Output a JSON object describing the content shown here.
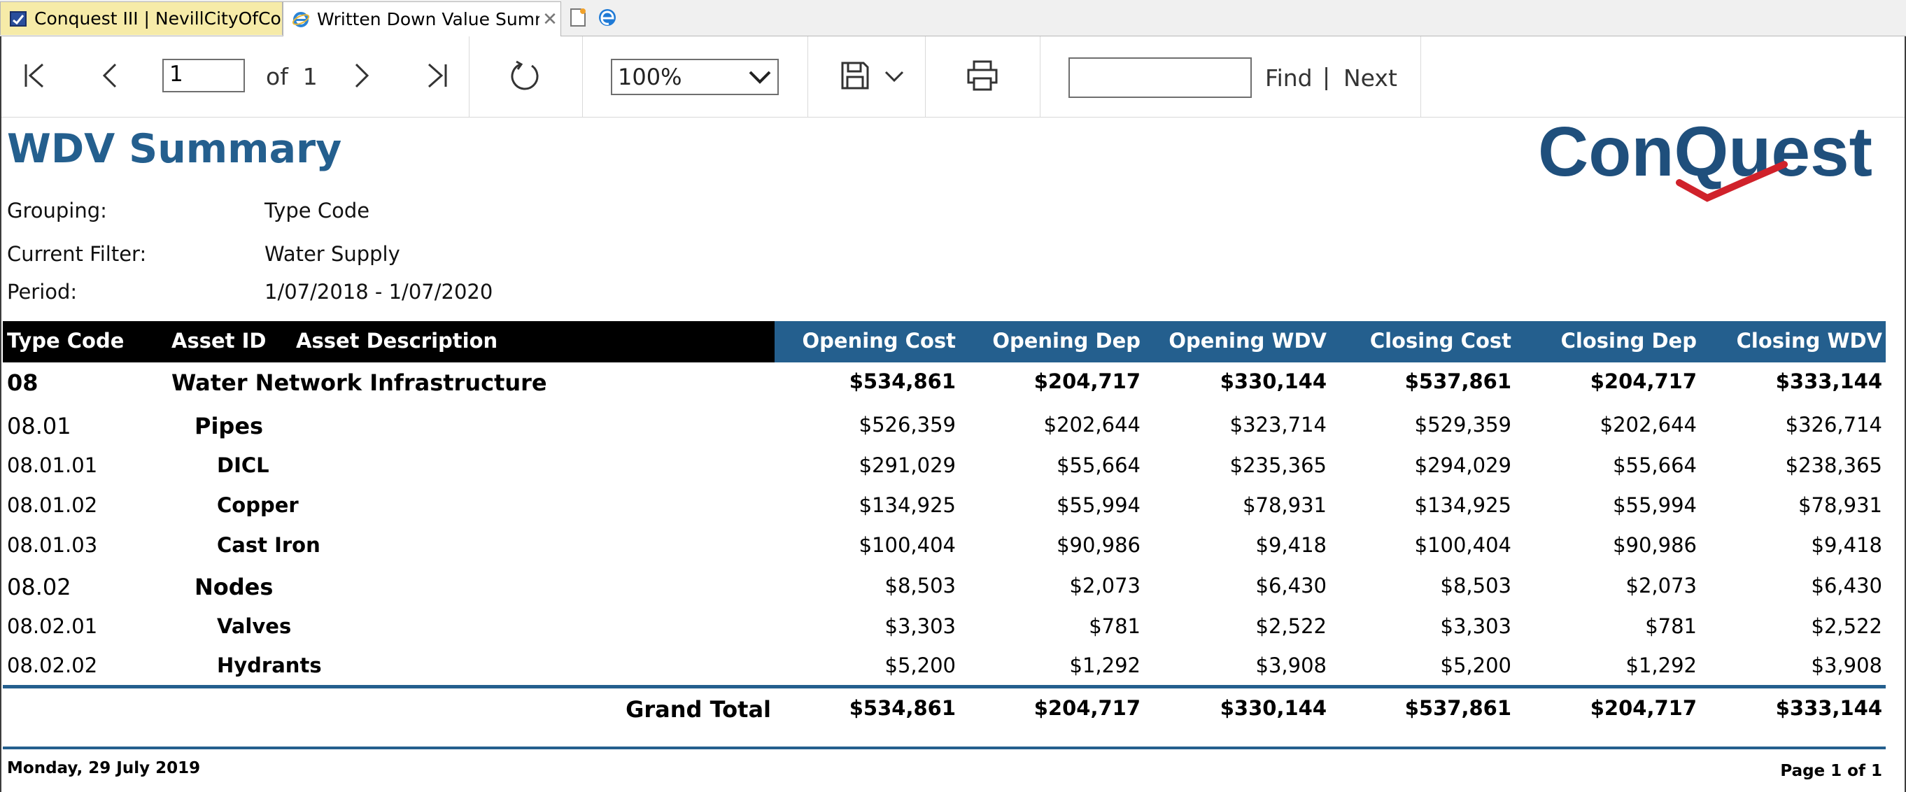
{
  "browser": {
    "tabs": [
      {
        "label": "Conquest III | NevillCityOfConq...",
        "active": false
      },
      {
        "label": "Written Down Value Summa...",
        "active": true,
        "close": "✕"
      }
    ],
    "icons": [
      "app-tab-icon",
      "ie-icon",
      "new-tab-icon",
      "edge-icon"
    ]
  },
  "toolbar": {
    "page_input_value": "1",
    "of_label": "of",
    "total_pages": "1",
    "zoom_value": "100%",
    "find_label": "Find",
    "separator": "|",
    "next_label": "Next",
    "icons": [
      "first-page-icon",
      "prev-page-icon",
      "next-page-icon",
      "last-page-icon",
      "refresh-icon",
      "save-icon",
      "chevron-down-icon",
      "print-icon"
    ]
  },
  "report": {
    "title": "WDV Summary",
    "logo_text": "ConQuest",
    "meta": [
      {
        "label": "Grouping:",
        "value": "Type Code"
      },
      {
        "label": "Current Filter:",
        "value": "Water Supply"
      },
      {
        "label": "Period:",
        "value": "1/07/2018 - 1/07/2020"
      }
    ],
    "headers": {
      "type_code": "Type Code",
      "asset_id": "Asset ID",
      "asset_description": "Asset Description",
      "opening_cost": "Opening Cost",
      "opening_dep": "Opening Dep",
      "opening_wdv": "Opening WDV",
      "closing_cost": "Closing Cost",
      "closing_dep": "Closing Dep",
      "closing_wdv": "Closing WDV"
    },
    "rows": [
      {
        "code": "08",
        "desc": "Water Network Infrastructure",
        "values": [
          "$534,861",
          "$204,717",
          "$330,144",
          "$537,861",
          "$204,717",
          "$333,144"
        ]
      },
      {
        "code": "08.01",
        "desc": "Pipes",
        "values": [
          "$526,359",
          "$202,644",
          "$323,714",
          "$529,359",
          "$202,644",
          "$326,714"
        ]
      },
      {
        "code": "08.01.01",
        "desc": "DICL",
        "values": [
          "$291,029",
          "$55,664",
          "$235,365",
          "$294,029",
          "$55,664",
          "$238,365"
        ]
      },
      {
        "code": "08.01.02",
        "desc": "Copper",
        "values": [
          "$134,925",
          "$55,994",
          "$78,931",
          "$134,925",
          "$55,994",
          "$78,931"
        ]
      },
      {
        "code": "08.01.03",
        "desc": "Cast Iron",
        "values": [
          "$100,404",
          "$90,986",
          "$9,418",
          "$100,404",
          "$90,986",
          "$9,418"
        ]
      },
      {
        "code": "08.02",
        "desc": "Nodes",
        "values": [
          "$8,503",
          "$2,073",
          "$6,430",
          "$8,503",
          "$2,073",
          "$6,430"
        ]
      },
      {
        "code": "08.02.01",
        "desc": "Valves",
        "values": [
          "$3,303",
          "$781",
          "$2,522",
          "$3,303",
          "$781",
          "$2,522"
        ]
      },
      {
        "code": "08.02.02",
        "desc": "Hydrants",
        "values": [
          "$5,200",
          "$1,292",
          "$3,908",
          "$5,200",
          "$1,292",
          "$3,908"
        ]
      }
    ],
    "grand_total": {
      "label": "Grand Total",
      "values": [
        "$534,861",
        "$204,717",
        "$330,144",
        "$537,861",
        "$204,717",
        "$333,144"
      ]
    },
    "footer": {
      "date": "Monday, 29 July 2019",
      "page": "Page 1 of 1"
    },
    "colors": {
      "accent": "#245f8e",
      "header_dark": "#000000",
      "logo_check": "#d0222b"
    }
  }
}
